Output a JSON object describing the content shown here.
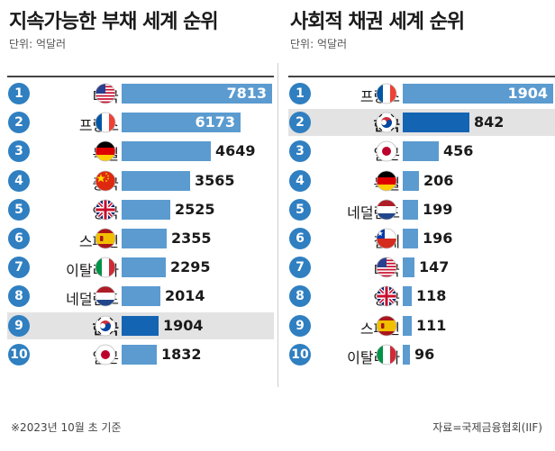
{
  "footnote": "※2023년 10월 초 기준",
  "source": "자료=국제금융협회(IIF)",
  "chart_data": [
    {
      "type": "bar",
      "title": "지속가능한 부채 세계 순위",
      "unit": "단위: 억달러",
      "max": 7813,
      "highlight": "한국",
      "highlight_color": "#1464b4",
      "bar_color": "#5b9bd0",
      "categories": [
        "미국",
        "프랑스",
        "독일",
        "중국",
        "영국",
        "스페인",
        "이탈리아",
        "네덜란드",
        "한국",
        "일본"
      ],
      "ranks": [
        "1",
        "2",
        "3",
        "4",
        "5",
        "6",
        "7",
        "8",
        "9",
        "10"
      ],
      "flags": [
        "usa-flag-icon",
        "france-flag-icon",
        "germany-flag-icon",
        "china-flag-icon",
        "uk-flag-icon",
        "spain-flag-icon",
        "italy-flag-icon",
        "netherlands-flag-icon",
        "korea-flag-icon",
        "japan-flag-icon"
      ],
      "values": [
        7813,
        6173,
        4649,
        3565,
        2525,
        2355,
        2295,
        2014,
        1904,
        1832
      ]
    },
    {
      "type": "bar",
      "title": "사회적 채권 세계 순위",
      "unit": "단위: 억달러",
      "max": 1904,
      "highlight": "한국",
      "highlight_color": "#1464b4",
      "bar_color": "#5b9bd0",
      "categories": [
        "프랑스",
        "한국",
        "일본",
        "독일",
        "네덜란드",
        "칠레",
        "미국",
        "영국",
        "스페인",
        "이탈리아"
      ],
      "ranks": [
        "1",
        "2",
        "3",
        "4",
        "5",
        "6",
        "7",
        "8",
        "9",
        "10"
      ],
      "flags": [
        "france-flag-icon",
        "korea-flag-icon",
        "japan-flag-icon",
        "germany-flag-icon",
        "netherlands-flag-icon",
        "chile-flag-icon",
        "usa-flag-icon",
        "uk-flag-icon",
        "spain-flag-icon",
        "italy-flag-icon"
      ],
      "values": [
        1904,
        842,
        456,
        206,
        199,
        196,
        147,
        118,
        111,
        96
      ]
    }
  ]
}
